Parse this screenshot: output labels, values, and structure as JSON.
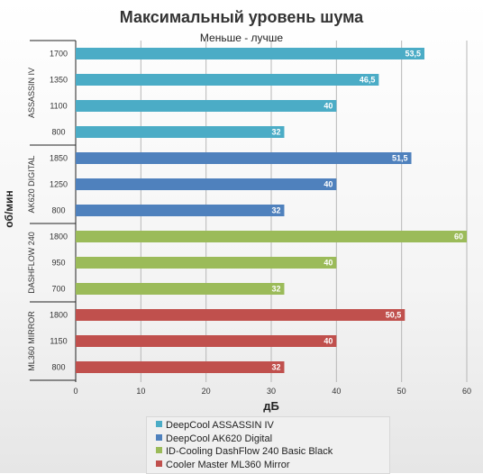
{
  "chart_data": {
    "type": "bar",
    "orientation": "horizontal",
    "title": "Максимальный уровень шума",
    "subtitle": "Меньше - лучше",
    "xlabel": "дБ",
    "ylabel": "об/мин",
    "xlim": [
      0,
      60
    ],
    "xticks": [
      0,
      10,
      20,
      30,
      40,
      50,
      60
    ],
    "grid": true,
    "legend_position": "bottom",
    "groups": [
      {
        "label": "ASSASSIN IV",
        "series": "DeepCool ASSASSIN IV",
        "color": "#4bacc6",
        "bars": [
          {
            "rpm": "1700",
            "value": 53.5,
            "label": "53,5"
          },
          {
            "rpm": "1350",
            "value": 46.5,
            "label": "46,5"
          },
          {
            "rpm": "1100",
            "value": 40,
            "label": "40"
          },
          {
            "rpm": "800",
            "value": 32,
            "label": "32"
          }
        ]
      },
      {
        "label": "AK620 DIGITAL",
        "series": "DeepCool AK620 Digital",
        "color": "#4f81bd",
        "bars": [
          {
            "rpm": "1850",
            "value": 51.5,
            "label": "51,5"
          },
          {
            "rpm": "1250",
            "value": 40,
            "label": "40"
          },
          {
            "rpm": "800",
            "value": 32,
            "label": "32"
          }
        ]
      },
      {
        "label": "DASHFLOW 240",
        "series": "ID-Cooling DashFlow 240 Basic Black",
        "color": "#9bbb59",
        "bars": [
          {
            "rpm": "1800",
            "value": 60,
            "label": "60"
          },
          {
            "rpm": "950",
            "value": 40,
            "label": "40"
          },
          {
            "rpm": "700",
            "value": 32,
            "label": "32"
          }
        ]
      },
      {
        "label": "ML360 MIRROR",
        "series": "Cooler Master ML360 Mirror",
        "color": "#c0504d",
        "bars": [
          {
            "rpm": "1800",
            "value": 50.5,
            "label": "50,5"
          },
          {
            "rpm": "1150",
            "value": 40,
            "label": "40"
          },
          {
            "rpm": "800",
            "value": 32,
            "label": "32"
          }
        ]
      }
    ],
    "legend": [
      {
        "name": "DeepCool ASSASSIN IV",
        "color": "#4bacc6"
      },
      {
        "name": "DeepCool AK620 Digital",
        "color": "#4f81bd"
      },
      {
        "name": "ID-Cooling DashFlow 240 Basic Black",
        "color": "#9bbb59"
      },
      {
        "name": "Cooler Master ML360 Mirror",
        "color": "#c0504d"
      }
    ]
  }
}
